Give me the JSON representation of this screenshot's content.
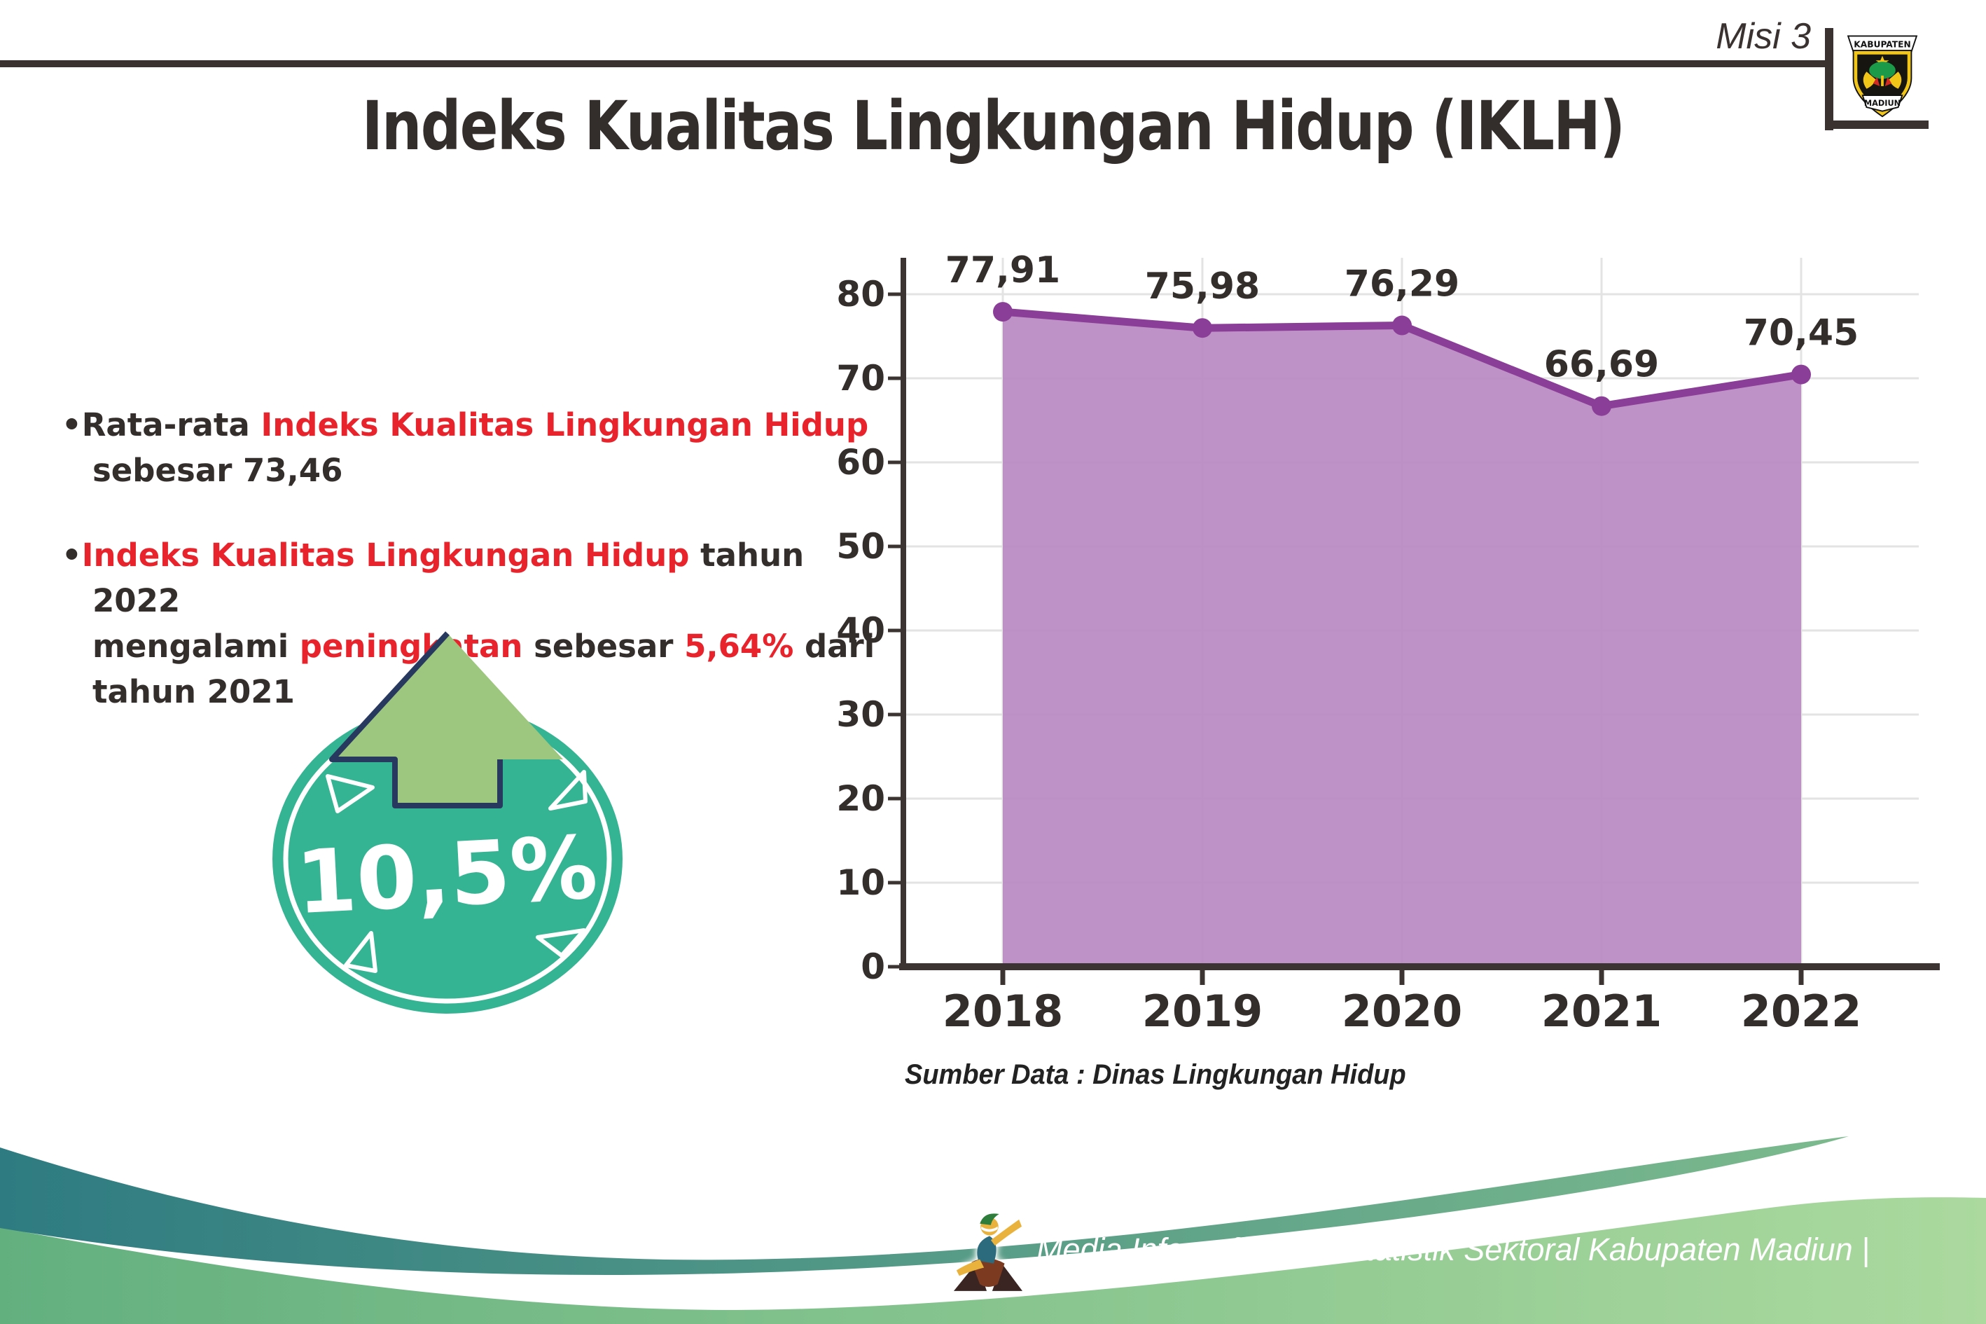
{
  "header": {
    "misi_label": "Misi 3",
    "title": "Indeks Kualitas Lingkungan Hidup (IKLH)"
  },
  "logo": {
    "top_text": "KABUPATEN",
    "bottom_text": "MADIUN"
  },
  "bullets": [
    {
      "segments": [
        {
          "text": "Rata-rata ",
          "color": "dark"
        },
        {
          "text": "Indeks Kualitas Lingkungan Hidup",
          "color": "red"
        },
        {
          "text": "\nsebesar 73,46",
          "color": "dark"
        }
      ]
    },
    {
      "segments": [
        {
          "text": "Indeks Kualitas Lingkungan Hidup",
          "color": "red"
        },
        {
          "text": " tahun 2022\nmengalami ",
          "color": "dark"
        },
        {
          "text": "peningkatan",
          "color": "red"
        },
        {
          "text": " sebesar ",
          "color": "dark"
        },
        {
          "text": "5,64%",
          "color": "red"
        },
        {
          "text": " dari\ntahun 2021",
          "color": "dark"
        }
      ]
    }
  ],
  "badge": {
    "value": "10,5%"
  },
  "chart_data": {
    "type": "area",
    "title": "",
    "xlabel": "",
    "ylabel": "",
    "categories": [
      "2018",
      "2019",
      "2020",
      "2021",
      "2022"
    ],
    "values": [
      77.91,
      75.98,
      76.29,
      66.69,
      70.45
    ],
    "labels": [
      "77,91",
      "75,98",
      "76,29",
      "66,69",
      "70,45"
    ],
    "ylim": [
      0,
      80
    ],
    "ytick_step": 10,
    "grid": true,
    "legend": false,
    "line_color": "#8a3e97",
    "fill_color": "#b886c1",
    "marker_color": "#8a3e97"
  },
  "source_note": "Sumber Data : Dinas Lingkungan Hidup",
  "footer": {
    "caption": "Media Infografis Data Statistik Sektoral Kabupaten Madiun |"
  },
  "colors": {
    "accent_red": "#e8232b",
    "text_dark": "#332e2c",
    "rule_dark": "#3a3230",
    "axis_dark": "#3b3432",
    "grid_gray": "#e3e3e3",
    "badge_teal": "#35b493",
    "arrow_green": "#9dc67e",
    "arrow_outline": "#27395f",
    "footer_teal_left": "#2e7b81",
    "footer_teal_right": "#7cba8d",
    "footer_green_left": "#63b07f",
    "footer_green_right": "#abd99e"
  }
}
